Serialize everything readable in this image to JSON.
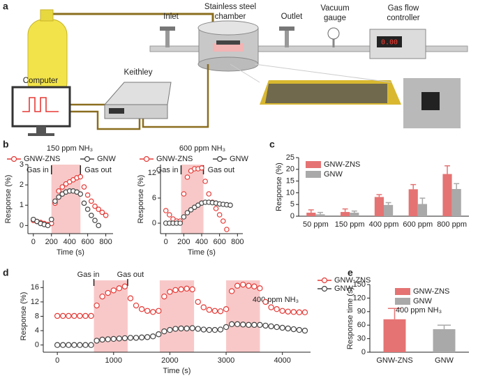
{
  "panel_labels": [
    "a",
    "b",
    "c",
    "d",
    "e"
  ],
  "diagram": {
    "inlet": "Inlet",
    "chamber": [
      "Stainless steel",
      "chamber"
    ],
    "outlet": "Outlet",
    "gauge": [
      "Vacuum",
      "gauge"
    ],
    "controller": [
      "Gas flow",
      "controller"
    ],
    "display": "0.00",
    "computer": "Computer",
    "keithley": "Keithley"
  },
  "chart_data": [
    {
      "type": "line",
      "title": "150 ppm NH₃",
      "xlabel": "Time (s)",
      "ylabel": "Response (%)",
      "x": [
        0,
        40,
        80,
        120,
        160,
        200,
        240,
        280,
        320,
        360,
        400,
        440,
        480,
        520,
        560,
        600,
        640,
        680,
        720,
        760,
        800,
        840
      ],
      "series": [
        {
          "name": "GNW-ZNS",
          "color": "#e53935",
          "values": [
            0.25,
            0.2,
            0.15,
            0.1,
            0.05,
            0.1,
            1.1,
            1.7,
            1.9,
            2.05,
            2.15,
            2.25,
            2.35,
            2.4,
            1.9,
            1.5,
            1.2,
            0.95,
            0.8,
            0.65,
            0.5,
            null
          ]
        },
        {
          "name": "GNW",
          "color": "#444444",
          "values": [
            0.3,
            0.2,
            0.1,
            0.05,
            0,
            0.3,
            1.2,
            1.4,
            1.55,
            1.65,
            1.7,
            1.7,
            1.65,
            1.55,
            1.1,
            0.8,
            0.5,
            0.25,
            0,
            null,
            null,
            null
          ]
        }
      ],
      "xlim": [
        -60,
        880
      ],
      "xticks": [
        0,
        200,
        400,
        600,
        800
      ],
      "ylim": [
        -0.4,
        3
      ],
      "yticks": [
        0,
        1,
        2,
        3
      ],
      "shaded": [
        [
          200,
          520
        ]
      ],
      "annotations": [
        "Gas in",
        "Gas out"
      ]
    },
    {
      "type": "line",
      "title": "600 ppm NH₃",
      "xlabel": "Time (s)",
      "ylabel": "Response (%)",
      "x": [
        0,
        40,
        80,
        120,
        160,
        200,
        240,
        280,
        320,
        360,
        400,
        440,
        480,
        520,
        560,
        600,
        640,
        680,
        720,
        760,
        800,
        840
      ],
      "series": [
        {
          "name": "GNW-ZNS",
          "color": "#e53935",
          "values": [
            3,
            2,
            1,
            0.5,
            0.5,
            7,
            11,
            12.5,
            13,
            13,
            13.2,
            10,
            7,
            5,
            3.5,
            2,
            0.5,
            -1.5,
            null,
            null,
            null,
            null
          ]
        },
        {
          "name": "GNW",
          "color": "#444444",
          "values": [
            0,
            0,
            0,
            0,
            0,
            1.5,
            2.5,
            3.2,
            3.8,
            4.3,
            4.8,
            5,
            5,
            4.9,
            4.8,
            4.6,
            4.5,
            4.4,
            4.3,
            null,
            null,
            null
          ]
        }
      ],
      "xlim": [
        -60,
        860
      ],
      "xticks": [
        0,
        200,
        400,
        600,
        800
      ],
      "ylim": [
        -2.5,
        14
      ],
      "yticks": [
        0,
        6,
        12
      ],
      "shaded": [
        [
          170,
          420
        ]
      ],
      "annotations": [
        "Gas in",
        "Gas out"
      ]
    },
    {
      "type": "bar",
      "ylabel": "Response (%)",
      "categories": [
        "50 ppm",
        "150 ppm",
        "400 ppm",
        "600 ppm",
        "800 ppm"
      ],
      "series": [
        {
          "name": "GNW-ZNS",
          "color": "#e57373",
          "values": [
            1.5,
            1.8,
            8.2,
            11.5,
            18
          ],
          "errors": [
            1.2,
            1.3,
            1,
            2,
            3.5
          ]
        },
        {
          "name": "GNW",
          "color": "#a9a9a9",
          "values": [
            0.8,
            1.5,
            4.8,
            5.2,
            11.6
          ],
          "errors": [
            0.8,
            0.7,
            1,
            2.5,
            2.3
          ]
        }
      ],
      "ylim": [
        0,
        25
      ],
      "yticks": [
        0,
        5,
        10,
        15,
        20,
        25
      ]
    },
    {
      "type": "line",
      "xlabel": "Time (s)",
      "ylabel": "Response (%)",
      "x": [
        0,
        100,
        200,
        300,
        400,
        500,
        600,
        700,
        800,
        900,
        1000,
        1100,
        1200,
        1300,
        1400,
        1500,
        1600,
        1700,
        1800,
        1900,
        2000,
        2100,
        2200,
        2300,
        2400,
        2500,
        2600,
        2700,
        2800,
        2900,
        3000,
        3100,
        3200,
        3300,
        3400,
        3500,
        3600,
        3700,
        3800,
        3900,
        4000,
        4100,
        4200,
        4300,
        4400
      ],
      "series": [
        {
          "name": "GNW-ZNS",
          "color": "#e53935",
          "values": [
            8.1,
            8.1,
            8.1,
            8.1,
            8.1,
            8.1,
            8.1,
            11,
            13.5,
            14.5,
            15.2,
            15.8,
            16.3,
            13,
            11,
            10,
            9.5,
            9.2,
            9.5,
            13.5,
            14.8,
            15.3,
            15.5,
            15.7,
            15.5,
            12,
            10.5,
            9.8,
            9.5,
            9.4,
            10,
            15,
            16.5,
            16.8,
            16.5,
            16.3,
            15.8,
            12,
            10.5,
            10,
            9.5,
            9.3,
            9.2,
            9.1,
            9.1
          ]
        },
        {
          "name": "GNW",
          "color": "#444444",
          "values": [
            0,
            0,
            0,
            0,
            0,
            0,
            0,
            1.2,
            1.5,
            1.6,
            1.7,
            1.8,
            1.9,
            2,
            2,
            2.1,
            2.2,
            2.4,
            3,
            3.8,
            4.2,
            4.5,
            4.6,
            4.6,
            4.7,
            4.5,
            4.3,
            4.2,
            4.2,
            4.3,
            5,
            5.8,
            5.8,
            5.7,
            5.6,
            5.6,
            5.6,
            5.4,
            5.2,
            5,
            4.8,
            4.6,
            4.4,
            4.2,
            4
          ]
        }
      ],
      "xlim": [
        -250,
        4500
      ],
      "xticks": [
        0,
        1000,
        2000,
        3000,
        4000
      ],
      "ylim": [
        -2,
        18
      ],
      "yticks": [
        0,
        4,
        8,
        12,
        16
      ],
      "shaded": [
        [
          650,
          1250
        ],
        [
          1820,
          2430
        ],
        [
          3000,
          3600
        ]
      ],
      "annotations": [
        "Gas in",
        "Gas out"
      ],
      "note": "400 ppm NH₃"
    },
    {
      "type": "bar",
      "ylabel": "Response time (s)",
      "categories": [
        "GNW-ZNS",
        "GNW"
      ],
      "values": [
        73,
        51
      ],
      "errors": [
        24,
        9
      ],
      "colors": [
        "#e57373",
        "#a9a9a9"
      ],
      "ylim": [
        0,
        150
      ],
      "yticks": [
        0,
        30,
        60,
        90,
        120,
        150
      ],
      "note": "400 ppm NH₃"
    }
  ]
}
